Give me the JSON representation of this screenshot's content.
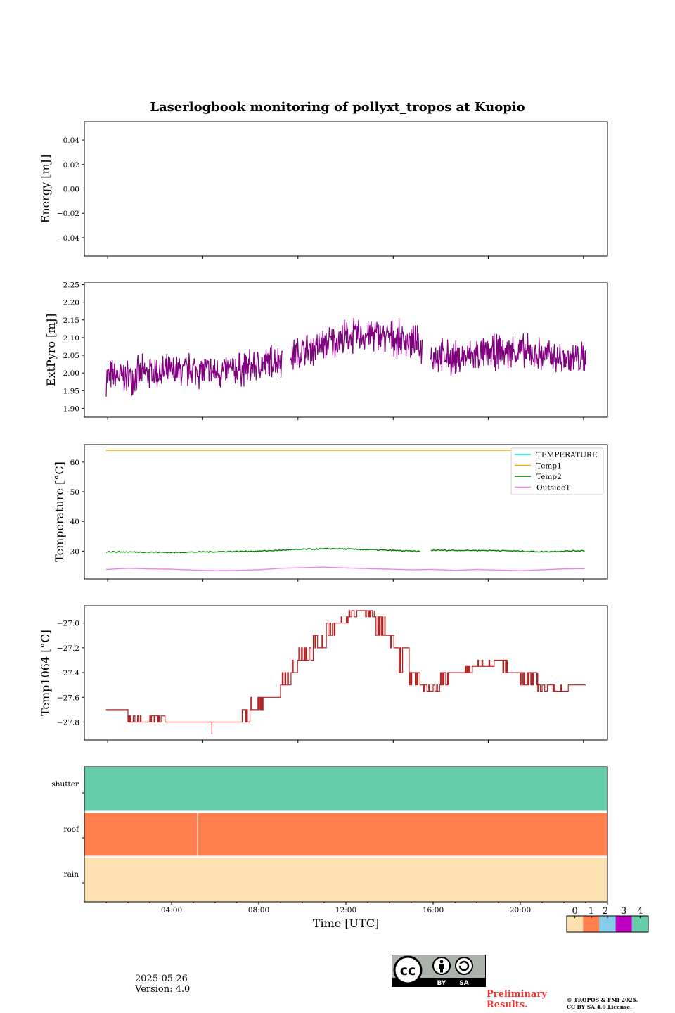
{
  "figure": {
    "title": "Laserlogbook monitoring of pollyxt_tropos at Kuopio",
    "xlabel": "Time [UTC]",
    "x_tick_labels": [
      "04:00",
      "08:00",
      "12:00",
      "16:00",
      "20:00"
    ],
    "date": "2025-05-26",
    "version": "Version: 4.0",
    "preliminary": "Preliminary Results.",
    "copyright_line1": "© TROPOS & FMI 2025.",
    "copyright_line2": "CC BY SA 4.0 License.",
    "license_badge": {
      "by": "BY",
      "sa": "SA"
    }
  },
  "chart_data": [
    {
      "type": "line",
      "ylabel": "Energy [mJ]",
      "ylim": [
        -0.055,
        0.055
      ],
      "y_ticks": [
        0.04,
        0.02,
        0.0,
        -0.02,
        -0.04
      ],
      "y_tick_labels": [
        "0.04",
        "0.02",
        "0.00",
        "−0.02",
        "−0.04"
      ],
      "series": []
    },
    {
      "type": "line",
      "ylabel": "ExtPyro [mJ]",
      "ylim": [
        1.875,
        2.255
      ],
      "y_ticks": [
        1.9,
        1.95,
        2.0,
        2.05,
        2.1,
        2.15,
        2.2,
        2.25
      ],
      "y_tick_labels": [
        "1.90",
        "1.95",
        "2.00",
        "2.05",
        "2.10",
        "2.15",
        "2.20",
        "2.25"
      ],
      "series": [
        {
          "color": "#800080",
          "x_hours": [
            1.0,
            2.0,
            3.0,
            4.0,
            5.0,
            6.0,
            7.0,
            8.0,
            9.0,
            10.0,
            11.0,
            12.0,
            13.0,
            14.0,
            15.0,
            16.0,
            17.0,
            18.0,
            19.0,
            20.0,
            21.0,
            22.0,
            23.0
          ],
          "mean": [
            1.99,
            1.99,
            2.0,
            2.0,
            2.01,
            2.0,
            2.01,
            2.02,
            2.04,
            2.06,
            2.08,
            2.1,
            2.11,
            2.1,
            2.09,
            2.05,
            2.04,
            2.05,
            2.06,
            2.06,
            2.05,
            2.04,
            2.04
          ],
          "spread": 0.05,
          "gaps_hours": [
            [
              9.1,
              9.45
            ],
            [
              15.5,
              15.85
            ]
          ]
        }
      ]
    },
    {
      "type": "line",
      "ylabel": "Temperature [°C]",
      "ylim": [
        20.6,
        65.9
      ],
      "y_ticks": [
        30,
        40,
        50,
        60
      ],
      "y_tick_labels": [
        "30",
        "40",
        "50",
        "60"
      ],
      "legend_location": "top-right",
      "series": [
        {
          "name": "TEMPERATURE",
          "color": "#00e5e5",
          "x_hours": [],
          "y": []
        },
        {
          "name": "Temp1",
          "color": "#ffa500",
          "x_hours": [
            1,
            23
          ],
          "y": [
            64.0,
            64.0
          ]
        },
        {
          "name": "Temp2",
          "color": "#008000",
          "x_hours": [
            1,
            4,
            8,
            10,
            11.5,
            13,
            15.5,
            16,
            19,
            21,
            23
          ],
          "y": [
            29.8,
            29.6,
            30.0,
            30.6,
            30.8,
            30.5,
            29.9,
            30.3,
            30.2,
            29.8,
            30.2
          ]
        },
        {
          "name": "OutsideT",
          "color": "#ee82ee",
          "x_hours": [
            1,
            2,
            3,
            4,
            5,
            6,
            7,
            8,
            9,
            10,
            11,
            12,
            13,
            14,
            15,
            16,
            17,
            18,
            19,
            20,
            21,
            22,
            23
          ],
          "y": [
            23.8,
            24.2,
            24.0,
            23.9,
            23.6,
            23.4,
            23.5,
            23.7,
            24.2,
            24.4,
            24.6,
            24.3,
            24.1,
            23.9,
            23.7,
            23.8,
            23.5,
            23.8,
            23.6,
            23.4,
            23.7,
            24.0,
            24.1
          ]
        }
      ]
    },
    {
      "type": "line",
      "ylabel": "Temp1064 [°C]",
      "ylim": [
        -27.945,
        -26.86
      ],
      "y_ticks": [
        -27.8,
        -27.6,
        -27.4,
        -27.2,
        -27.0
      ],
      "y_tick_labels": [
        "−27.8",
        "−27.6",
        "−27.4",
        "−27.2",
        "−27.0"
      ],
      "series": [
        {
          "color": "#b22222",
          "x_hours": [
            1.0,
            1.9,
            2.0,
            3.0,
            3.7,
            4.0,
            5.0,
            6.0,
            7.0,
            7.6,
            8.2,
            9.0,
            9.5,
            9.8,
            10.5,
            11.1,
            11.5,
            12.1,
            12.5,
            13.3,
            13.8,
            14.2,
            14.9,
            15.4,
            15.8,
            16.3,
            16.7,
            17.2,
            17.8,
            18.8,
            19.4,
            20.0,
            20.8,
            21.5,
            22.2,
            23.0
          ],
          "y": [
            -27.7,
            -27.7,
            -27.8,
            -27.75,
            -27.8,
            -27.8,
            -27.8,
            -27.8,
            -27.8,
            -27.7,
            -27.6,
            -27.5,
            -27.4,
            -27.3,
            -27.2,
            -27.1,
            -27.0,
            -26.95,
            -26.9,
            -26.95,
            -27.1,
            -27.2,
            -27.4,
            -27.5,
            -27.55,
            -27.5,
            -27.4,
            -27.4,
            -27.35,
            -27.3,
            -27.4,
            -27.4,
            -27.5,
            -27.55,
            -27.5,
            -27.5
          ],
          "spikes": [
            {
              "x_hours": 5.85,
              "y": -27.9
            }
          ]
        }
      ]
    },
    {
      "type": "heatmap",
      "rows": [
        "shutter",
        "roof",
        "rain"
      ],
      "values": [
        4,
        1,
        0
      ],
      "colorbar_ticks": [
        "0",
        "1",
        "2",
        "3",
        "4"
      ],
      "colors": [
        "#fde0b0",
        "#ff7f4f",
        "#87ceeb",
        "#c000c0",
        "#66cdaa"
      ]
    }
  ]
}
